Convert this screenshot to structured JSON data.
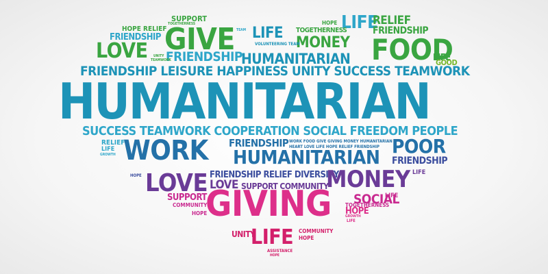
{
  "colors": {
    "green": "#3aa541",
    "lime": "#76b72a",
    "teal": "#1d93b7",
    "cyan": "#2ea6c9",
    "blue": "#2471a8",
    "indigo": "#3b4d9e",
    "purple": "#6a3b97",
    "magenta": "#c92a90",
    "pink": "#dd2f8a",
    "crimson": "#d3206b"
  },
  "words": {
    "support_top": "SUPPORT",
    "togetherness_top": "TOGETHERNESS",
    "hope_relief": "HOPE RELIEF",
    "friendship_tl": "FRIENDSHIP",
    "give": "GIVE",
    "team_top": "TEAM",
    "life_top": "LIFE",
    "life_tr": "LIFE",
    "relief_tr": "RELIEF",
    "hope_tr": "HOPE",
    "togetherness_tr": "TOGETHERNESS",
    "friendship_tr": "FRIENDSHIP",
    "love_top": "LOVE",
    "friendship_mid": "FRIENDSHIP",
    "money_top": "MONEY",
    "food": "FOOD",
    "unity_tiny": "UNITY",
    "teamwork_tiny": "TEAMWORK",
    "volunteering_team": "VOLUNTEERING TEAM",
    "humanitarian_top": "HUMANITARIAN",
    "life_right": "LIFE",
    "good": "GOOD",
    "row1": "FRIENDSHIP LEISURE HAPPINESS UNITY SUCCESS TEAMWORK",
    "humanitarian_main": "HUMANITARIAN",
    "row2": "SUCCESS TEAMWORK COOPERATION SOCIAL FREEDOM PEOPLE",
    "work": "WORK",
    "friendship_center": "FRIENDSHIP",
    "small_row": "WORK FOOD GIVE GIVING MONEY HUMANITARIAN",
    "small_row2": "HEART LOVE LIFE HOPE RELIEF FRIENDSHIP",
    "poor": "POOR",
    "humanitarian_mid": "HUMANITARIAN",
    "friendship_r": "FRIENDSHIP",
    "relief_l": "RELIEF",
    "life_l": "LIFE",
    "growth_l": "GROWTH",
    "hope_l": "HOPE",
    "friendship_relief_diversity": "FRIENDSHIP RELIEF DIVERSITY",
    "money_mid": "MONEY",
    "love_mid": "LOVE",
    "love_small": "LOVE",
    "support_community": "SUPPORT COMMUNITY",
    "life_mid": "LIFE",
    "social": "SOCIAL",
    "life_social": "LIFE",
    "support_l": "SUPPORT",
    "community_l": "COMMUNITY",
    "giving": "GIVING",
    "togetherness_r": "TOGETHERNESS",
    "hope_r": "HOPE",
    "growth_r": "GROWTH",
    "life_r2": "LIFE",
    "hope_l2": "HOPE",
    "unity_bottom": "UNITY",
    "community_b": "COMMUNITY",
    "hope_b": "HOPE",
    "life_bottom": "LIFE",
    "assistance": "ASSISTANCE",
    "hope_bottom": "HOPE"
  }
}
